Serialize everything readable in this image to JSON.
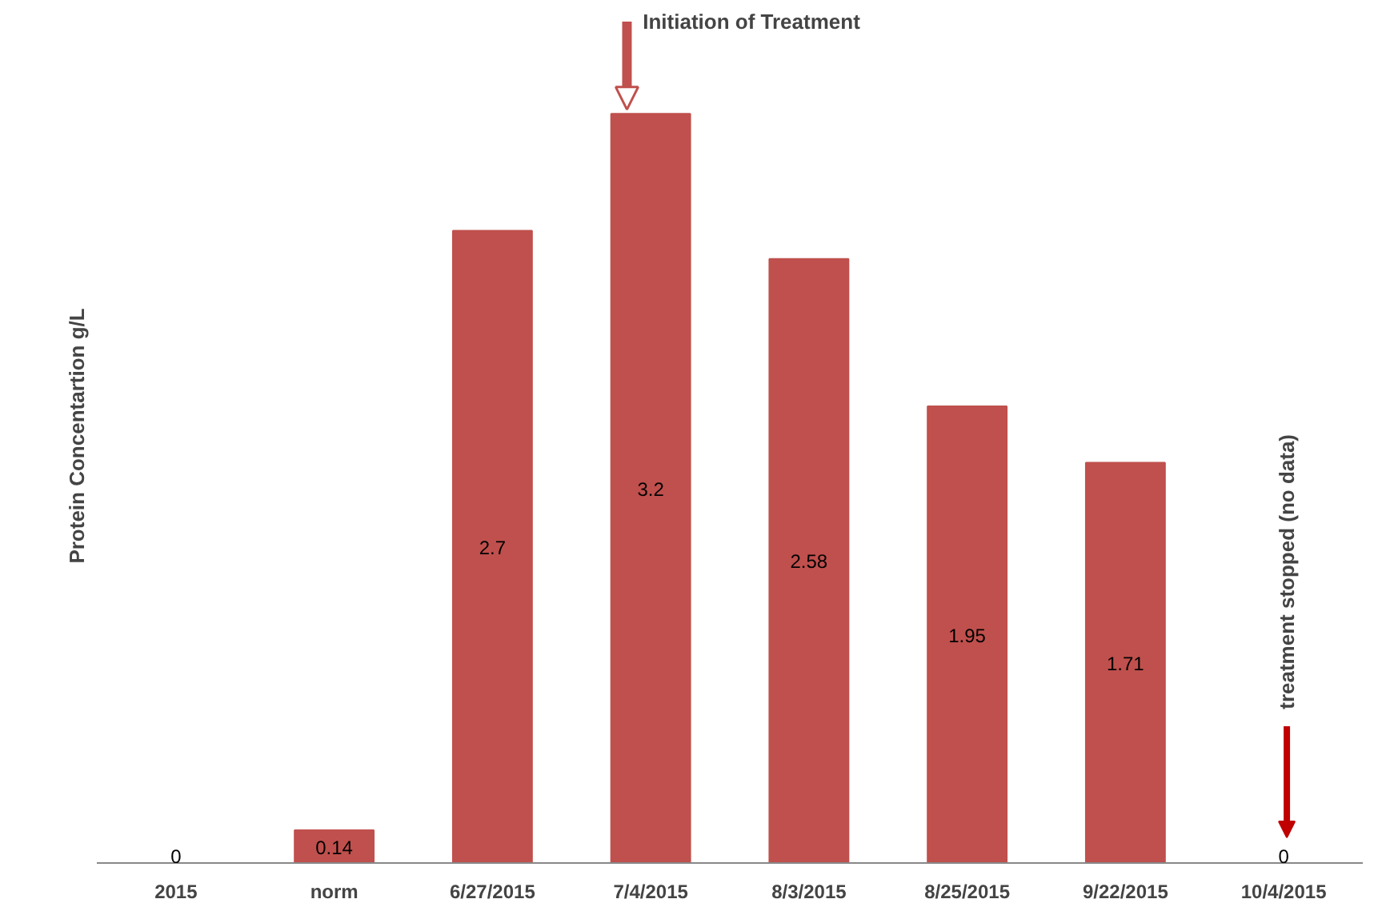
{
  "chart_data": {
    "type": "bar",
    "ylabel": "Protein Concentartion g/L",
    "categories": [
      "2015",
      "norm",
      "6/27/2015",
      "7/4/2015",
      "8/3/2015",
      "8/25/2015",
      "9/22/2015",
      "10/4/2015"
    ],
    "values": [
      0,
      0.14,
      2.7,
      3.2,
      2.58,
      1.95,
      1.71,
      0
    ],
    "color": "#c0504d",
    "data_labels": true,
    "annotations": [
      "Initiation of Treatment",
      "treatment stopped (no data)"
    ]
  }
}
